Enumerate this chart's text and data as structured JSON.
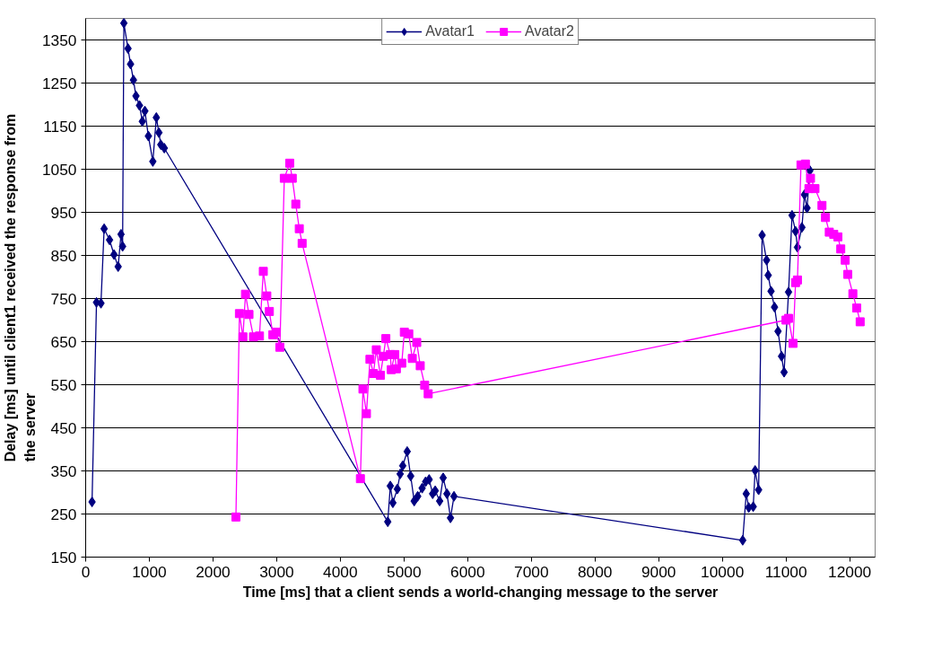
{
  "chart_data": {
    "type": "line",
    "xlabel": "Time [ms] that a client sends a world-changing message to the server",
    "ylabel": "Delay [ms] until client1 received the response from\nthe server",
    "xlim": [
      0,
      12400
    ],
    "ylim": [
      150,
      1400
    ],
    "xticks": [
      0,
      1000,
      2000,
      3000,
      4000,
      5000,
      6000,
      7000,
      8000,
      9000,
      10000,
      11000,
      12000
    ],
    "yticks": [
      150,
      250,
      350,
      450,
      550,
      650,
      750,
      850,
      950,
      1050,
      1150,
      1250,
      1350
    ],
    "grid": "y",
    "legend": "top",
    "series": [
      {
        "name": "Avatar1",
        "color": "#000080",
        "marker": "diamond",
        "x": [
          100,
          170,
          240,
          290,
          375,
          445,
          510,
          555,
          580,
          600,
          665,
          705,
          750,
          790,
          845,
          890,
          930,
          985,
          1055,
          1110,
          1150,
          1180,
          1235,
          4745,
          4785,
          4825,
          4895,
          4940,
          4980,
          5050,
          5105,
          5160,
          5215,
          5285,
          5340,
          5395,
          5450,
          5490,
          5560,
          5615,
          5675,
          5730,
          5785,
          10320,
          10375,
          10415,
          10485,
          10515,
          10570,
          10625,
          10695,
          10720,
          10765,
          10820,
          10875,
          10930,
          10970,
          11040,
          11095,
          11150,
          11180,
          11250,
          11290,
          11330,
          11375
        ],
        "values": [
          278,
          741,
          739,
          912,
          886,
          852,
          824,
          899,
          871,
          1389,
          1330,
          1294,
          1257,
          1220,
          1198,
          1161,
          1185,
          1127,
          1068,
          1170,
          1135,
          1107,
          1099,
          232,
          315,
          276,
          308,
          343,
          362,
          395,
          338,
          280,
          291,
          310,
          325,
          330,
          297,
          304,
          280,
          334,
          297,
          241,
          291,
          189,
          297,
          265,
          267,
          351,
          306,
          897,
          839,
          804,
          767,
          730,
          674,
          616,
          579,
          765,
          943,
          906,
          869,
          915,
          991,
          960,
          1047
        ]
      },
      {
        "name": "Avatar2",
        "color": "#ff00ff",
        "marker": "square",
        "x": [
          2360,
          2415,
          2470,
          2510,
          2565,
          2635,
          2730,
          2790,
          2845,
          2885,
          2940,
          2995,
          3050,
          3120,
          3205,
          3245,
          3300,
          3355,
          3400,
          4315,
          4355,
          4410,
          4465,
          4520,
          4565,
          4630,
          4675,
          4715,
          4785,
          4800,
          4855,
          4880,
          4965,
          5005,
          5075,
          5130,
          5200,
          5255,
          5325,
          5380,
          11000,
          11040,
          11110,
          11150,
          11180,
          11235,
          11305,
          11360,
          11385,
          11455,
          11565,
          11620,
          11680,
          11750,
          11815,
          11860,
          11930,
          11970,
          12050,
          12110,
          12165
        ],
        "values": [
          243,
          715,
          661,
          760,
          713,
          661,
          663,
          813,
          756,
          720,
          666,
          672,
          637,
          1029,
          1064,
          1029,
          969,
          912,
          878,
          332,
          540,
          483,
          609,
          576,
          631,
          572,
          616,
          657,
          620,
          585,
          620,
          587,
          600,
          672,
          668,
          611,
          648,
          594,
          549,
          529,
          700,
          704,
          646,
          787,
          793,
          1060,
          1062,
          1005,
          1029,
          1005,
          966,
          938,
          904,
          899,
          893,
          865,
          839,
          806,
          761,
          728,
          696
        ]
      }
    ]
  }
}
